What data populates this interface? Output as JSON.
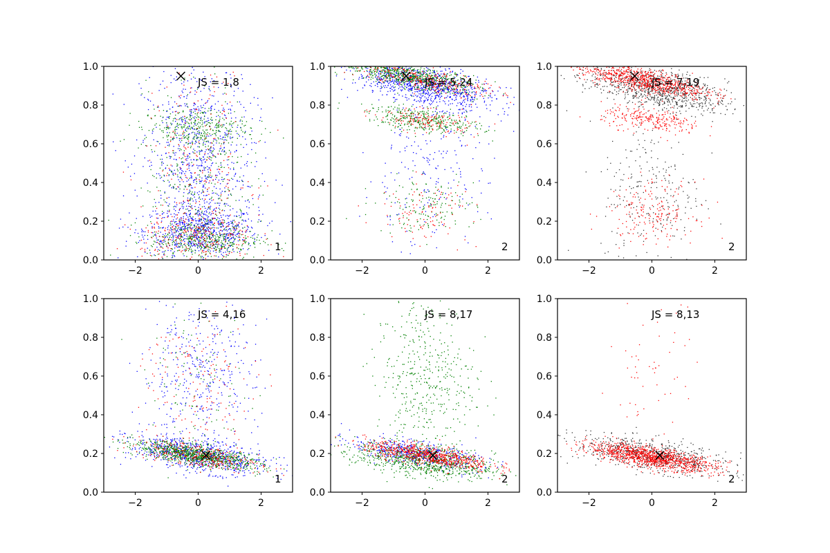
{
  "chart_data": [
    {
      "type": "scatter",
      "panel": "top-left",
      "annotation": "JS = 1,8",
      "corner_label": "1",
      "xlim": [
        -3,
        3
      ],
      "ylim": [
        0,
        1
      ],
      "x_ticks": [
        -2,
        0,
        2
      ],
      "y_ticks": [
        0.0,
        0.2,
        0.4,
        0.6,
        0.8,
        1.0
      ],
      "x_tick_labels": [
        "−2",
        "0",
        "2"
      ],
      "y_tick_labels": [
        "0.0",
        "0.2",
        "0.4",
        "0.6",
        "0.8",
        "1.0"
      ],
      "marker": {
        "x": -0.55,
        "y": 0.95,
        "symbol": "x"
      },
      "series": [
        {
          "color": "#0000ff",
          "clusters": [
            {
              "cx": 0.1,
              "cy": 0.15,
              "sx": 0.9,
              "sy": 0.06,
              "n": 600,
              "slope": 0
            },
            {
              "cx": 0.0,
              "cy": 0.5,
              "sx": 0.9,
              "sy": 0.28,
              "n": 900,
              "slope": 0
            }
          ]
        },
        {
          "color": "#008000",
          "clusters": [
            {
              "cx": 0.2,
              "cy": 0.1,
              "sx": 0.9,
              "sy": 0.05,
              "n": 400,
              "slope": 0
            },
            {
              "cx": -0.1,
              "cy": 0.68,
              "sx": 0.85,
              "sy": 0.05,
              "n": 300,
              "slope": 0
            },
            {
              "cx": 0.0,
              "cy": 0.4,
              "sx": 0.8,
              "sy": 0.25,
              "n": 400,
              "slope": 0
            }
          ]
        },
        {
          "color": "#ff0000",
          "clusters": [
            {
              "cx": 0.0,
              "cy": 0.12,
              "sx": 0.9,
              "sy": 0.07,
              "n": 250,
              "slope": 0
            },
            {
              "cx": 0.0,
              "cy": 0.5,
              "sx": 0.85,
              "sy": 0.28,
              "n": 250,
              "slope": 0
            }
          ]
        }
      ]
    },
    {
      "type": "scatter",
      "panel": "top-middle",
      "annotation": "JS = 5,24",
      "corner_label": "2",
      "xlim": [
        -3,
        3
      ],
      "ylim": [
        0,
        1
      ],
      "x_ticks": [
        -2,
        0,
        2
      ],
      "y_ticks": [
        0.0,
        0.2,
        0.4,
        0.6,
        0.8,
        1.0
      ],
      "x_tick_labels": [
        "−2",
        "0",
        "2"
      ],
      "y_tick_labels": [
        "0.0",
        "0.2",
        "0.4",
        "0.6",
        "0.8",
        "1.0"
      ],
      "marker": {
        "x": -0.6,
        "y": 0.95,
        "symbol": "x"
      },
      "series": [
        {
          "color": "#0000ff",
          "clusters": [
            {
              "cx": 0.0,
              "cy": 0.9,
              "sx": 1.1,
              "sy": 0.05,
              "n": 900,
              "slope": -0.03
            },
            {
              "cx": 0.0,
              "cy": 0.45,
              "sx": 1.0,
              "sy": 0.2,
              "n": 200,
              "slope": 0
            }
          ]
        },
        {
          "color": "#008000",
          "clusters": [
            {
              "cx": -0.5,
              "cy": 0.95,
              "sx": 1.1,
              "sy": 0.03,
              "n": 700,
              "slope": -0.03
            },
            {
              "cx": 0.0,
              "cy": 0.72,
              "sx": 0.9,
              "sy": 0.03,
              "n": 350,
              "slope": -0.02
            },
            {
              "cx": 0.0,
              "cy": 0.28,
              "sx": 0.8,
              "sy": 0.07,
              "n": 150,
              "slope": 0
            }
          ]
        },
        {
          "color": "#ff0000",
          "clusters": [
            {
              "cx": 0.0,
              "cy": 0.93,
              "sx": 1.0,
              "sy": 0.03,
              "n": 300,
              "slope": -0.03
            },
            {
              "cx": 0.0,
              "cy": 0.72,
              "sx": 0.8,
              "sy": 0.03,
              "n": 150,
              "slope": -0.02
            },
            {
              "cx": 0.0,
              "cy": 0.25,
              "sx": 0.7,
              "sy": 0.08,
              "n": 100,
              "slope": 0
            }
          ]
        }
      ]
    },
    {
      "type": "scatter",
      "panel": "top-right",
      "annotation": "JS = 7,19",
      "corner_label": "2",
      "xlim": [
        -3,
        3
      ],
      "ylim": [
        0,
        1
      ],
      "x_ticks": [
        -2,
        0,
        2
      ],
      "y_ticks": [
        0.0,
        0.2,
        0.4,
        0.6,
        0.8,
        1.0
      ],
      "x_tick_labels": [
        "−2",
        "0",
        "2"
      ],
      "y_tick_labels": [
        "0.0",
        "0.2",
        "0.4",
        "0.6",
        "0.8",
        "1.0"
      ],
      "marker": {
        "x": -0.55,
        "y": 0.95,
        "symbol": "x"
      },
      "series": [
        {
          "color": "#333333",
          "clusters": [
            {
              "cx": 0.2,
              "cy": 0.88,
              "sx": 1.1,
              "sy": 0.05,
              "n": 900,
              "slope": -0.03
            },
            {
              "cx": 0.0,
              "cy": 0.35,
              "sx": 0.8,
              "sy": 0.2,
              "n": 250,
              "slope": 0
            }
          ]
        },
        {
          "color": "#ff0000",
          "clusters": [
            {
              "cx": -0.3,
              "cy": 0.93,
              "sx": 1.0,
              "sy": 0.03,
              "n": 800,
              "slope": -0.03
            },
            {
              "cx": 0.0,
              "cy": 0.72,
              "sx": 0.8,
              "sy": 0.03,
              "n": 250,
              "slope": -0.02
            },
            {
              "cx": 0.0,
              "cy": 0.25,
              "sx": 0.7,
              "sy": 0.08,
              "n": 180,
              "slope": 0
            }
          ]
        }
      ]
    },
    {
      "type": "scatter",
      "panel": "bottom-left",
      "annotation": "JS = 4,16",
      "corner_label": "1",
      "xlim": [
        -3,
        3
      ],
      "ylim": [
        0,
        1
      ],
      "x_ticks": [
        -2,
        0,
        2
      ],
      "y_ticks": [
        0.0,
        0.2,
        0.4,
        0.6,
        0.8,
        1.0
      ],
      "x_tick_labels": [
        "−2",
        "0",
        "2"
      ],
      "y_tick_labels": [
        "0.0",
        "0.2",
        "0.4",
        "0.6",
        "0.8",
        "1.0"
      ],
      "marker": {
        "x": 0.25,
        "y": 0.19,
        "symbol": "x"
      },
      "series": [
        {
          "color": "#0000ff",
          "clusters": [
            {
              "cx": 0.0,
              "cy": 0.19,
              "sx": 1.1,
              "sy": 0.04,
              "n": 700,
              "slope": -0.025
            },
            {
              "cx": 0.0,
              "cy": 0.6,
              "sx": 0.9,
              "sy": 0.22,
              "n": 400,
              "slope": 0
            }
          ]
        },
        {
          "color": "#008000",
          "clusters": [
            {
              "cx": 0.0,
              "cy": 0.19,
              "sx": 1.0,
              "sy": 0.025,
              "n": 900,
              "slope": -0.025
            },
            {
              "cx": 0.0,
              "cy": 0.55,
              "sx": 0.8,
              "sy": 0.2,
              "n": 100,
              "slope": 0
            }
          ]
        },
        {
          "color": "#ff0000",
          "clusters": [
            {
              "cx": 0.0,
              "cy": 0.19,
              "sx": 1.0,
              "sy": 0.03,
              "n": 300,
              "slope": -0.025
            },
            {
              "cx": 0.0,
              "cy": 0.55,
              "sx": 0.9,
              "sy": 0.22,
              "n": 150,
              "slope": 0
            }
          ]
        }
      ]
    },
    {
      "type": "scatter",
      "panel": "bottom-middle",
      "annotation": "JS = 8,17",
      "corner_label": "2",
      "xlim": [
        -3,
        3
      ],
      "ylim": [
        0,
        1
      ],
      "x_ticks": [
        -2,
        0,
        2
      ],
      "y_ticks": [
        0.0,
        0.2,
        0.4,
        0.6,
        0.8,
        1.0
      ],
      "x_tick_labels": [
        "−2",
        "0",
        "2"
      ],
      "y_tick_labels": [
        "0.0",
        "0.2",
        "0.4",
        "0.6",
        "0.8",
        "1.0"
      ],
      "marker": {
        "x": 0.25,
        "y": 0.19,
        "symbol": "x"
      },
      "series": [
        {
          "color": "#0000ff",
          "clusters": [
            {
              "cx": -0.3,
              "cy": 0.2,
              "sx": 1.0,
              "sy": 0.03,
              "n": 500,
              "slope": -0.025
            }
          ]
        },
        {
          "color": "#008000",
          "clusters": [
            {
              "cx": 0.0,
              "cy": 0.16,
              "sx": 1.1,
              "sy": 0.04,
              "n": 800,
              "slope": -0.02
            },
            {
              "cx": 0.0,
              "cy": 0.58,
              "sx": 0.8,
              "sy": 0.22,
              "n": 450,
              "slope": 0
            }
          ]
        },
        {
          "color": "#ff0000",
          "clusters": [
            {
              "cx": 0.1,
              "cy": 0.19,
              "sx": 1.0,
              "sy": 0.025,
              "n": 700,
              "slope": -0.025
            }
          ]
        }
      ]
    },
    {
      "type": "scatter",
      "panel": "bottom-right",
      "annotation": "JS = 8,13",
      "corner_label": "2",
      "xlim": [
        -3,
        3
      ],
      "ylim": [
        0,
        1
      ],
      "x_ticks": [
        -2,
        0,
        2
      ],
      "y_ticks": [
        0.0,
        0.2,
        0.4,
        0.6,
        0.8,
        1.0
      ],
      "x_tick_labels": [
        "−2",
        "0",
        "2"
      ],
      "y_tick_labels": [
        "0.0",
        "0.2",
        "0.4",
        "0.6",
        "0.8",
        "1.0"
      ],
      "marker": {
        "x": 0.25,
        "y": 0.19,
        "symbol": "x"
      },
      "series": [
        {
          "color": "#333333",
          "clusters": [
            {
              "cx": 0.0,
              "cy": 0.19,
              "sx": 1.2,
              "sy": 0.04,
              "n": 700,
              "slope": -0.025
            }
          ]
        },
        {
          "color": "#ff0000",
          "clusters": [
            {
              "cx": 0.0,
              "cy": 0.18,
              "sx": 1.0,
              "sy": 0.025,
              "n": 1100,
              "slope": -0.025
            },
            {
              "cx": 0.0,
              "cy": 0.6,
              "sx": 0.7,
              "sy": 0.2,
              "n": 60,
              "slope": 0
            }
          ]
        }
      ]
    }
  ]
}
